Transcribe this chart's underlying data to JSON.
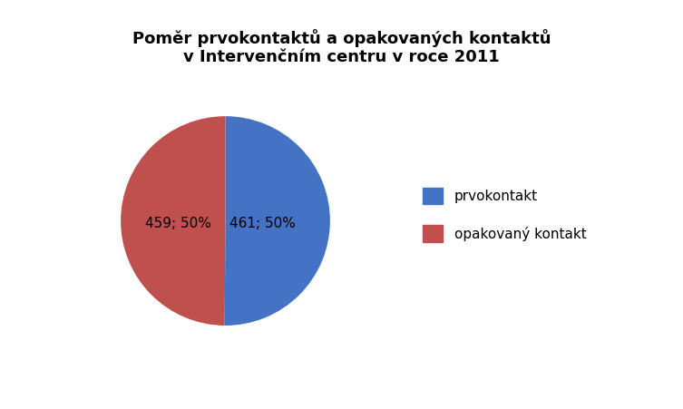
{
  "title": "Poměr prvokontaktů a opakovaných kontaktů\nv Intervenčním centru v roce 2011",
  "values": [
    461,
    459
  ],
  "labels": [
    "prvokontakt",
    "opakovaný kontakt"
  ],
  "colors": [
    "#4472C4",
    "#C0504D"
  ],
  "slice_labels": [
    "461; 50%",
    "459; 50%"
  ],
  "title_fontsize": 13,
  "label_fontsize": 11,
  "legend_fontsize": 11,
  "startangle": 90,
  "background_color": "#ffffff"
}
